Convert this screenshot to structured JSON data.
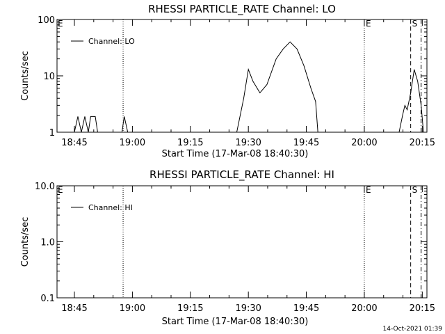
{
  "stamp": "14-Oct-2021 01:39",
  "chart_data": [
    {
      "type": "line",
      "title": "RHESSI PARTICLE_RATE Channel: LO",
      "xlabel": "Start Time (17-Mar-08 18:40:30)",
      "ylabel": "Counts/sec",
      "yscale": "log",
      "ylim": [
        1,
        100
      ],
      "xlim": [
        18.675,
        20.27
      ],
      "yticks": [
        "1",
        "10",
        "100"
      ],
      "xticks": [
        "18:45",
        "19:00",
        "19:15",
        "19:30",
        "19:45",
        "20:00",
        "20:15"
      ],
      "legend_entry": "Channel: LO",
      "legend_position": "top-left",
      "vlines": [
        {
          "x": 18.96,
          "style": "dotted",
          "label": ""
        },
        {
          "x": 20.0,
          "style": "dotted",
          "label": "E"
        },
        {
          "x": 20.2,
          "style": "dashed",
          "label": "S"
        },
        {
          "x": 20.245,
          "style": "dashdot",
          "label": ""
        }
      ],
      "corner_label": "E",
      "series": [
        {
          "name": "Channel: LO",
          "points": [
            [
              18.75,
              1.0
            ],
            [
              18.765,
              1.9
            ],
            [
              18.78,
              1.0
            ],
            [
              18.795,
              1.9
            ],
            [
              18.81,
              1.0
            ],
            [
              18.82,
              1.9
            ],
            [
              18.84,
              1.9
            ],
            [
              18.85,
              1.0
            ],
            [
              18.955,
              1.0
            ],
            [
              18.965,
              1.9
            ],
            [
              18.98,
              1.0
            ],
            [
              19.45,
              1.0
            ],
            [
              19.48,
              4.0
            ],
            [
              19.5,
              13.0
            ],
            [
              19.52,
              8.0
            ],
            [
              19.55,
              5.0
            ],
            [
              19.58,
              7.0
            ],
            [
              19.62,
              20.0
            ],
            [
              19.65,
              30.0
            ],
            [
              19.68,
              40.0
            ],
            [
              19.71,
              30.0
            ],
            [
              19.74,
              15.0
            ],
            [
              19.77,
              6.0
            ],
            [
              19.79,
              3.5
            ],
            [
              19.8,
              1.0
            ],
            [
              20.15,
              1.0
            ],
            [
              20.165,
              2.0
            ],
            [
              20.175,
              3.0
            ],
            [
              20.185,
              2.5
            ],
            [
              20.2,
              5.0
            ],
            [
              20.215,
              13.0
            ],
            [
              20.23,
              8.0
            ],
            [
              20.245,
              3.0
            ],
            [
              20.255,
              1.0
            ]
          ]
        }
      ]
    },
    {
      "type": "line",
      "title": "RHESSI PARTICLE_RATE Channel: HI",
      "xlabel": "Start Time (17-Mar-08 18:40:30)",
      "ylabel": "Counts/sec",
      "yscale": "log",
      "ylim": [
        0.1,
        10
      ],
      "xlim": [
        18.675,
        20.27
      ],
      "yticks": [
        "0.1",
        "1.0",
        "10.0"
      ],
      "xticks": [
        "18:45",
        "19:00",
        "19:15",
        "19:30",
        "19:45",
        "20:00",
        "20:15"
      ],
      "legend_entry": "Channel: HI",
      "legend_position": "top-left",
      "vlines": [
        {
          "x": 18.96,
          "style": "dotted",
          "label": ""
        },
        {
          "x": 20.0,
          "style": "dotted",
          "label": "E"
        },
        {
          "x": 20.2,
          "style": "dashed",
          "label": "S"
        },
        {
          "x": 20.245,
          "style": "dashdot",
          "label": ""
        }
      ],
      "corner_label": "E",
      "series": [
        {
          "name": "Channel: HI",
          "points": []
        }
      ]
    }
  ]
}
